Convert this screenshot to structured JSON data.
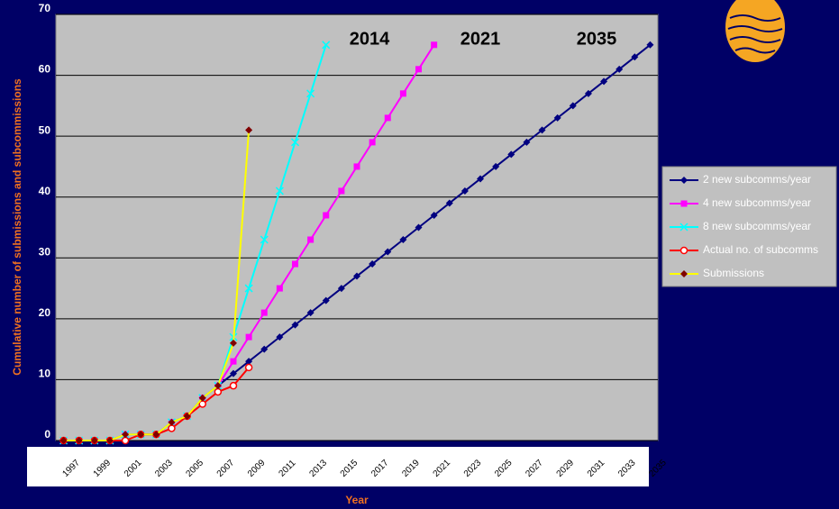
{
  "chart_data": {
    "type": "line",
    "annotations": [
      "2014",
      "2021",
      "2035"
    ],
    "ylabel": "Cumulative number of submissions and subcommissions",
    "xlabel": "Year",
    "categories": [
      "1997",
      null,
      "1999",
      null,
      "2001",
      null,
      "2003",
      null,
      "2005",
      null,
      "2007",
      null,
      "2009",
      null,
      "2011",
      null,
      "2013",
      null,
      "2015",
      null,
      "2017",
      null,
      "2019",
      null,
      "2021",
      null,
      "2023",
      null,
      "2025",
      null,
      "2027",
      null,
      "2029",
      null,
      "2031",
      null,
      "2033",
      null,
      "2035"
    ],
    "series": [
      {
        "name": "2 new  subcomms/year",
        "color": "#000080",
        "line_color": "#000080",
        "marker": "diamond",
        "values": [
          0,
          0,
          0,
          0,
          1,
          1,
          1,
          3,
          4,
          7,
          9,
          11,
          13,
          15,
          17,
          19,
          21,
          23,
          25,
          27,
          29,
          31,
          33,
          35,
          37,
          39,
          41,
          43,
          45,
          47,
          49,
          51,
          53,
          55,
          57,
          59,
          61,
          63,
          65
        ]
      },
      {
        "name": "4 new subcomms/year",
        "color": "#ff00ff",
        "line_color": "#ff00ff",
        "marker": "square",
        "values": [
          0,
          0,
          0,
          0,
          1,
          1,
          1,
          3,
          4,
          7,
          9,
          13,
          17,
          21,
          25,
          29,
          33,
          37,
          41,
          45,
          49,
          53,
          57,
          61,
          65,
          null,
          null,
          null,
          null,
          null,
          null,
          null,
          null,
          null,
          null,
          null,
          null,
          null,
          null
        ]
      },
      {
        "name": "8 new subcomms/year",
        "color": "#00ffff",
        "line_color": "#00ffff",
        "marker": "x",
        "values": [
          0,
          0,
          0,
          0,
          1,
          1,
          1,
          3,
          4,
          7,
          9,
          17,
          25,
          33,
          41,
          49,
          57,
          65,
          null,
          null,
          null,
          null,
          null,
          null,
          null,
          null,
          null,
          null,
          null,
          null,
          null,
          null,
          null,
          null,
          null,
          null,
          null,
          null,
          null
        ]
      },
      {
        "name": "Actual no. of subcomms",
        "color": "#ff0000",
        "line_color": "#ff0000",
        "marker": "circle",
        "values": [
          0,
          0,
          0,
          0,
          0,
          1,
          1,
          2,
          4,
          6,
          8,
          9,
          12,
          null,
          null,
          null,
          null,
          null,
          null,
          null,
          null,
          null,
          null,
          null,
          null,
          null,
          null,
          null,
          null,
          null,
          null,
          null,
          null,
          null,
          null,
          null,
          null,
          null,
          null
        ]
      },
      {
        "name": "Submissions",
        "color": "#800000",
        "line_color": "#ffff00",
        "marker": "diamond",
        "values": [
          0,
          0,
          0,
          0,
          1,
          1,
          1,
          3,
          4,
          7,
          9,
          16,
          51,
          null,
          null,
          null,
          null,
          null,
          null,
          null,
          null,
          null,
          null,
          null,
          null,
          null,
          null,
          null,
          null,
          null,
          null,
          null,
          null,
          null,
          null,
          null,
          null,
          null,
          null
        ]
      }
    ],
    "ylim": [
      0,
      70
    ],
    "yticks": [
      0,
      10,
      20,
      30,
      40,
      50,
      60,
      70
    ],
    "grid": true,
    "legend": "right"
  }
}
